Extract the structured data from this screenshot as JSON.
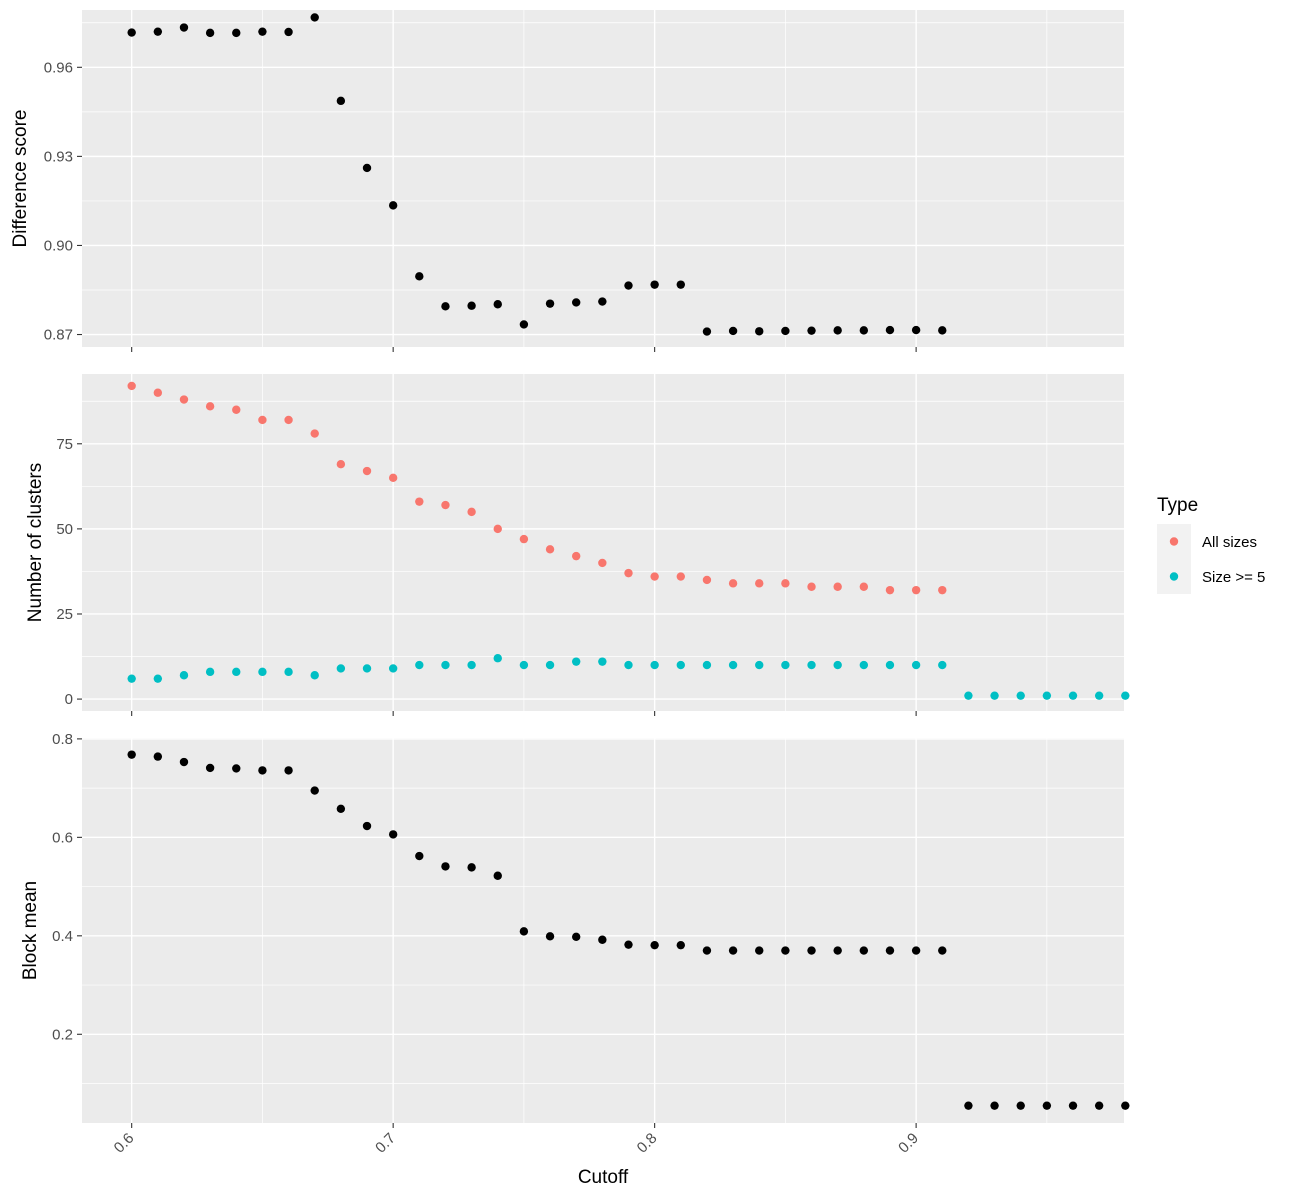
{
  "chart_data": {
    "type": "scatter",
    "xlabel": "Cutoff",
    "xlim": [
      0.581,
      0.9795
    ],
    "x_ticks": [
      0.6,
      0.7,
      0.8,
      0.9
    ],
    "x_tick_labels": [
      "0.6",
      "0.7",
      "0.8",
      "0.9"
    ],
    "grid": true,
    "legend": {
      "title": "Type",
      "placement": "right",
      "entries": [
        {
          "label": "All sizes",
          "color": "#F8766D"
        },
        {
          "label": "Size >= 5",
          "color": "#00BFC4"
        }
      ]
    },
    "panels": [
      {
        "ylabel": "Difference score",
        "ylim": [
          0.8658,
          0.9793
        ],
        "y_ticks": [
          0.87,
          0.9,
          0.93,
          0.96
        ],
        "y_tick_labels": [
          "0.87",
          "0.90",
          "0.93",
          "0.96"
        ],
        "series": [
          {
            "color": "#000000",
            "x": [
              0.6,
              0.61,
              0.62,
              0.63,
              0.64,
              0.65,
              0.66,
              0.67,
              0.68,
              0.69,
              0.7,
              0.71,
              0.72,
              0.73,
              0.74,
              0.75,
              0.76,
              0.77,
              0.78,
              0.79,
              0.8,
              0.81,
              0.82,
              0.83,
              0.84,
              0.85,
              0.86,
              0.87,
              0.88,
              0.89,
              0.9,
              0.91
            ],
            "values": [
              0.9717,
              0.972,
              0.9734,
              0.9716,
              0.9716,
              0.972,
              0.9719,
              0.9768,
              0.9487,
              0.9261,
              0.9135,
              0.8896,
              0.8795,
              0.8797,
              0.8802,
              0.8734,
              0.8804,
              0.8808,
              0.8811,
              0.8865,
              0.8868,
              0.8868,
              0.871,
              0.8712,
              0.8711,
              0.8712,
              0.8713,
              0.8714,
              0.8714,
              0.8715,
              0.8715,
              0.8714
            ]
          }
        ]
      },
      {
        "ylabel": "Number of clusters",
        "ylim": [
          -3.5,
          95.5
        ],
        "y_ticks": [
          0,
          25,
          50,
          75
        ],
        "y_tick_labels": [
          "0",
          "25",
          "50",
          "75"
        ],
        "series": [
          {
            "name": "All sizes",
            "color": "#F8766D",
            "x": [
              0.6,
              0.61,
              0.62,
              0.63,
              0.64,
              0.65,
              0.66,
              0.67,
              0.68,
              0.69,
              0.7,
              0.71,
              0.72,
              0.73,
              0.74,
              0.75,
              0.76,
              0.77,
              0.78,
              0.79,
              0.8,
              0.81,
              0.82,
              0.83,
              0.84,
              0.85,
              0.86,
              0.87,
              0.88,
              0.89,
              0.9,
              0.91
            ],
            "values": [
              92,
              90,
              88,
              86,
              85,
              82,
              82,
              78,
              69,
              67,
              65,
              58,
              57,
              55,
              50,
              47,
              44,
              42,
              40,
              37,
              36,
              36,
              35,
              34,
              34,
              34,
              33,
              33,
              33,
              32,
              32,
              32
            ]
          },
          {
            "name": "Size >= 5",
            "color": "#00BFC4",
            "x": [
              0.6,
              0.61,
              0.62,
              0.63,
              0.64,
              0.65,
              0.66,
              0.67,
              0.68,
              0.69,
              0.7,
              0.71,
              0.72,
              0.73,
              0.74,
              0.75,
              0.76,
              0.77,
              0.78,
              0.79,
              0.8,
              0.81,
              0.82,
              0.83,
              0.84,
              0.85,
              0.86,
              0.87,
              0.88,
              0.89,
              0.9,
              0.91,
              0.92,
              0.93,
              0.94,
              0.95,
              0.96,
              0.97,
              0.98
            ],
            "values": [
              6,
              6,
              7,
              8,
              8,
              8,
              8,
              7,
              9,
              9,
              9,
              10,
              10,
              10,
              12,
              10,
              10,
              11,
              11,
              10,
              10,
              10,
              10,
              10,
              10,
              10,
              10,
              10,
              10,
              10,
              10,
              10,
              1,
              1,
              1,
              1,
              1,
              1,
              1
            ]
          }
        ]
      },
      {
        "ylabel": "Block mean",
        "ylim": [
          0.0198,
          0.8018
        ],
        "y_ticks": [
          0.2,
          0.4,
          0.6,
          0.8
        ],
        "y_tick_labels": [
          "0.2",
          "0.4",
          "0.6",
          "0.8"
        ],
        "series": [
          {
            "color": "#000000",
            "x": [
              0.6,
              0.61,
              0.62,
              0.63,
              0.64,
              0.65,
              0.66,
              0.67,
              0.68,
              0.69,
              0.7,
              0.71,
              0.72,
              0.73,
              0.74,
              0.75,
              0.76,
              0.77,
              0.78,
              0.79,
              0.8,
              0.81,
              0.82,
              0.83,
              0.84,
              0.85,
              0.86,
              0.87,
              0.88,
              0.89,
              0.9,
              0.91,
              0.92,
              0.93,
              0.94,
              0.95,
              0.96,
              0.97,
              0.98
            ],
            "values": [
              0.768,
              0.764,
              0.753,
              0.741,
              0.74,
              0.736,
              0.736,
              0.695,
              0.658,
              0.623,
              0.606,
              0.562,
              0.541,
              0.539,
              0.522,
              0.409,
              0.399,
              0.398,
              0.392,
              0.382,
              0.381,
              0.381,
              0.37,
              0.37,
              0.37,
              0.37,
              0.37,
              0.37,
              0.37,
              0.37,
              0.37,
              0.37,
              0.055,
              0.055,
              0.055,
              0.055,
              0.055,
              0.055,
              0.055
            ]
          }
        ]
      }
    ]
  }
}
